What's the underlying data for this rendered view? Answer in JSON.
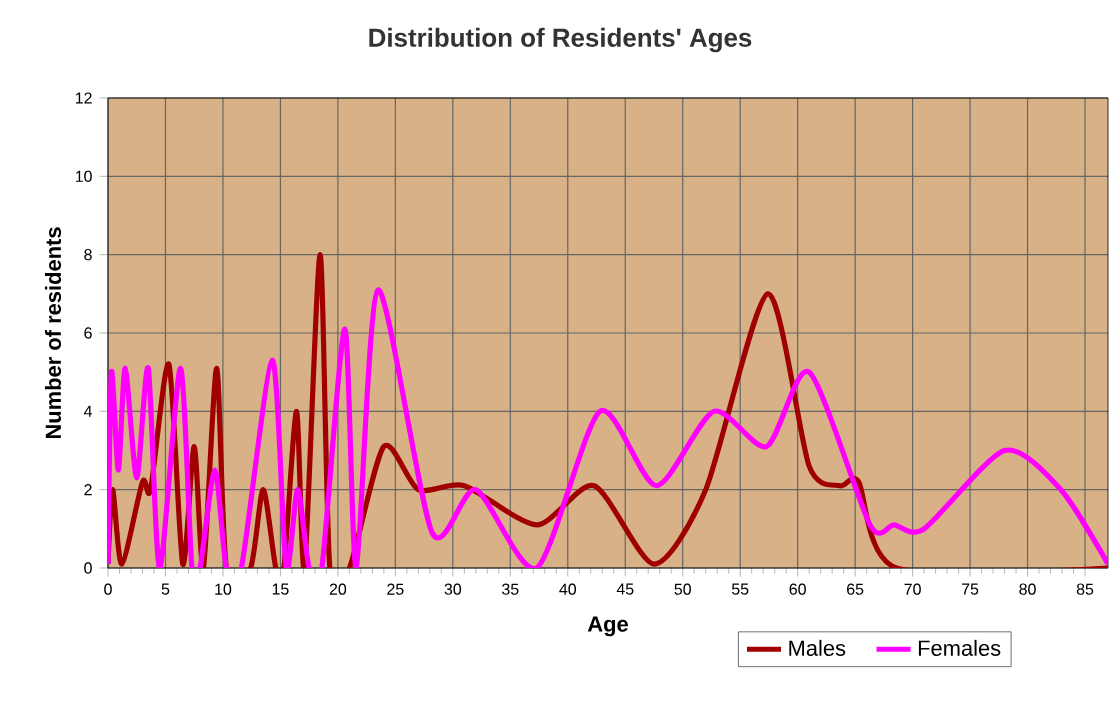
{
  "chart_data": {
    "type": "line",
    "title": "Distribution of Residents' Ages",
    "xlabel": "Age",
    "ylabel": "Number of residents",
    "xlim": [
      0,
      87
    ],
    "ylim": [
      0,
      12
    ],
    "xticks": [
      0,
      5,
      10,
      15,
      20,
      25,
      30,
      35,
      40,
      45,
      50,
      55,
      60,
      65,
      70,
      75,
      80,
      85
    ],
    "yticks": [
      0,
      2,
      4,
      6,
      8,
      10,
      12
    ],
    "grid": true,
    "legend": "bottom right",
    "marker": "none",
    "line_style": "solid",
    "series": [
      {
        "name": "Males",
        "color": "#a00000",
        "x": [
          0,
          0.4,
          1.2,
          3,
          3.7,
          5.3,
          6.5,
          7.5,
          8.3,
          9.45,
          10.3,
          12.4,
          13.5,
          14.6,
          15.3,
          16.4,
          17.1,
          18.45,
          19.3,
          21,
          24,
          27,
          31,
          37.3,
          42.3,
          47.5,
          52,
          57.4,
          61,
          63.7,
          65.3,
          68.6,
          87
        ],
        "values": [
          0.1,
          2,
          0.1,
          2.2,
          2,
          5.2,
          0.1,
          3.1,
          0,
          5.1,
          0,
          0,
          2,
          0,
          0,
          4,
          0,
          8,
          0,
          0,
          3.1,
          2,
          2.1,
          1.1,
          2.1,
          0.1,
          2,
          7,
          2.6,
          2.1,
          2.2,
          0,
          0
        ]
      },
      {
        "name": "Females",
        "color": "#ff00ff",
        "x": [
          0,
          0.3,
          0.9,
          1.5,
          2.5,
          3.5,
          4.5,
          6.3,
          7.3,
          8,
          9.3,
          10.3,
          11.6,
          14.3,
          15.5,
          16.5,
          17.5,
          18.6,
          20.6,
          21.6,
          23.5,
          28.2,
          32,
          37.3,
          42.8,
          47.7,
          52.7,
          57.3,
          61,
          66.3,
          68.4,
          71,
          78,
          82.9,
          87
        ],
        "values": [
          0.1,
          5,
          2.5,
          5.1,
          2.3,
          5.1,
          0,
          5.1,
          0,
          0,
          2.5,
          0,
          0,
          5.3,
          0,
          2,
          0,
          0,
          6.1,
          0,
          7.1,
          0.9,
          2,
          0,
          4,
          2.1,
          4,
          3.1,
          5,
          1.1,
          1.1,
          1,
          3,
          2,
          0.1
        ]
      }
    ]
  }
}
